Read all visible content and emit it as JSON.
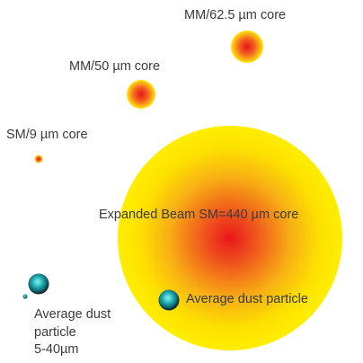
{
  "diagram": {
    "labels": {
      "mm_625": "MM/62.5 µm core",
      "mm_50": "MM/50 µm core",
      "sm_9": "SM/9 µm core",
      "expanded_beam": "Expanded Beam SM=440 µm core",
      "dust_large": "Average dust particle",
      "dust_small_line1": "Average dust",
      "dust_small_line2": "particle",
      "dust_small_line3": "5-40µm"
    },
    "colors": {
      "core_center": "#e8161b",
      "core_mid": "#f57f1d",
      "core_edge": "#ffe800",
      "dust_center": "#8ff2f0",
      "dust_mid": "#1a9aa0",
      "dust_edge": "#0a2e33"
    }
  }
}
